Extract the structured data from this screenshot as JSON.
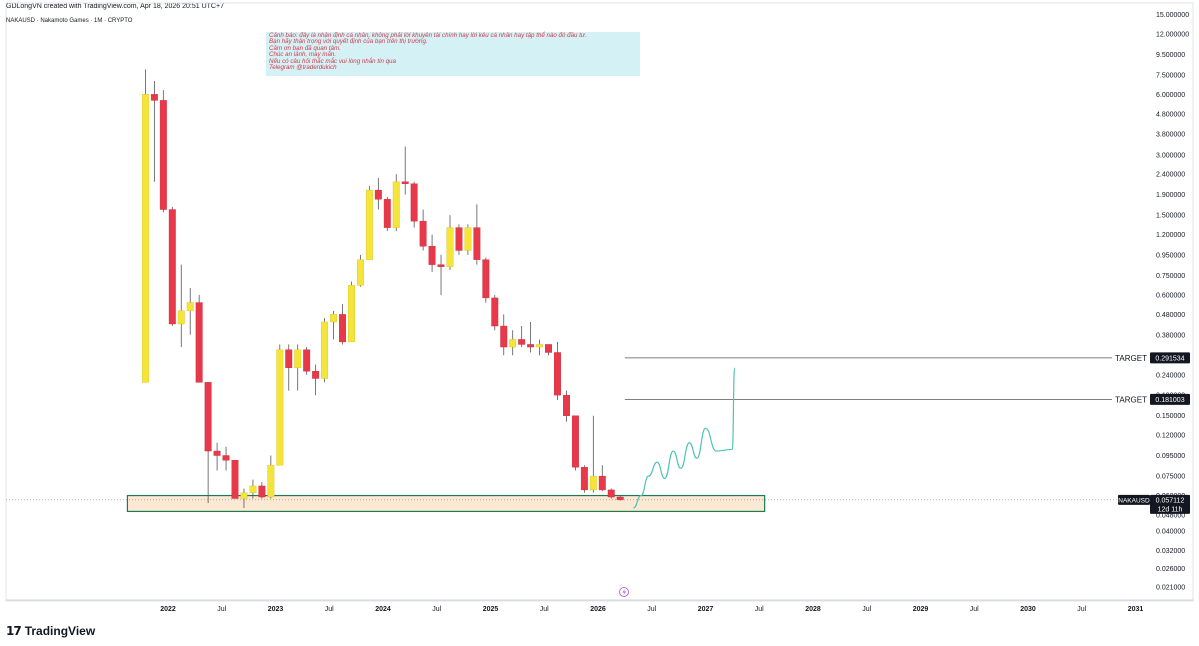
{
  "header": {
    "credit": "GDLongVN created with TradingView.com, Apr 18, 2026 20:51 UTC+7",
    "symbol_line": "NAKAUSD · Nakamoto Games · 1M · CRYPTO"
  },
  "branding": {
    "logo_mark": "17",
    "logo_text": "TradingView"
  },
  "annotation_box": {
    "lines": [
      "Cảnh báo: đây là nhận định cá nhân, không phải lời khuyên tài chính hay lời kêu cá nhân hay tập thể nào đó đầu tư.",
      "Bạn hãy thận trọng với quyết định của bạn trên thị trường.",
      "Cảm ơn bạn đã quan tâm.",
      "Chúc an lành, may mắn.",
      "Nếu có câu hỏi thắc mắc vui lòng nhắn tin qua",
      "Telegram @traderdukich"
    ]
  },
  "colors": {
    "up": "#f5e43a",
    "down": "#e8394a",
    "wick": "#555555",
    "zone_fill": "#fbe9d3",
    "zone_border": "#1e7a4f",
    "projection": "#4fc3b4",
    "target_line": "#555555",
    "label_bg": "#131722",
    "alert": "#b44fd6"
  },
  "chart_data": {
    "type": "candlestick",
    "scale": "log",
    "symbol": "NAKAUSD",
    "timeframe": "1M",
    "y_ticks": [
      "15.000000",
      "12.000000",
      "9.500000",
      "7.500000",
      "6.000000",
      "4.800000",
      "3.800000",
      "3.000000",
      "2.400000",
      "1.900000",
      "1.500000",
      "1.200000",
      "0.950000",
      "0.750000",
      "0.600000",
      "0.480000",
      "0.380000",
      "0.300000",
      "0.240000",
      "0.190000",
      "0.150000",
      "0.120000",
      "0.095000",
      "0.075000",
      "0.060000",
      "0.048000",
      "0.040000",
      "0.032000",
      "0.026000",
      "0.021000"
    ],
    "x_ticks": [
      "2022",
      "Jul",
      "2023",
      "Jul",
      "2024",
      "Jul",
      "2025",
      "Jul",
      "2026",
      "Jul",
      "2027",
      "Jul",
      "2028",
      "Jul",
      "2029",
      "Jul",
      "2030",
      "Jul",
      "2031"
    ],
    "x_tick_years": [
      2022,
      2022.5,
      2023,
      2023.5,
      2024,
      2024.5,
      2025,
      2025.5,
      2026,
      2026.5,
      2027,
      2027.5,
      2028,
      2028.5,
      2029,
      2029.5,
      2030,
      2030.5,
      2031
    ],
    "candles": [
      {
        "o": 0.22,
        "h": 8.0,
        "l": 0.22,
        "c": 6.0
      },
      {
        "o": 6.0,
        "h": 7.0,
        "l": 2.2,
        "c": 5.6
      },
      {
        "o": 5.6,
        "h": 6.3,
        "l": 1.55,
        "c": 1.6
      },
      {
        "o": 1.6,
        "h": 1.65,
        "l": 0.42,
        "c": 0.43
      },
      {
        "o": 0.43,
        "h": 0.85,
        "l": 0.33,
        "c": 0.5
      },
      {
        "o": 0.5,
        "h": 0.65,
        "l": 0.38,
        "c": 0.55
      },
      {
        "o": 0.55,
        "h": 0.6,
        "l": 0.22,
        "c": 0.22
      },
      {
        "o": 0.22,
        "h": 0.22,
        "l": 0.055,
        "c": 0.1
      },
      {
        "o": 0.1,
        "h": 0.11,
        "l": 0.08,
        "c": 0.095
      },
      {
        "o": 0.095,
        "h": 0.105,
        "l": 0.08,
        "c": 0.09
      },
      {
        "o": 0.09,
        "h": 0.09,
        "l": 0.058,
        "c": 0.058
      },
      {
        "o": 0.058,
        "h": 0.065,
        "l": 0.052,
        "c": 0.062
      },
      {
        "o": 0.062,
        "h": 0.072,
        "l": 0.058,
        "c": 0.067
      },
      {
        "o": 0.067,
        "h": 0.07,
        "l": 0.058,
        "c": 0.059
      },
      {
        "o": 0.059,
        "h": 0.095,
        "l": 0.058,
        "c": 0.085
      },
      {
        "o": 0.085,
        "h": 0.34,
        "l": 0.085,
        "c": 0.32
      },
      {
        "o": 0.32,
        "h": 0.34,
        "l": 0.2,
        "c": 0.26
      },
      {
        "o": 0.26,
        "h": 0.34,
        "l": 0.2,
        "c": 0.32
      },
      {
        "o": 0.32,
        "h": 0.33,
        "l": 0.24,
        "c": 0.25
      },
      {
        "o": 0.25,
        "h": 0.27,
        "l": 0.19,
        "c": 0.23
      },
      {
        "o": 0.23,
        "h": 0.46,
        "l": 0.22,
        "c": 0.44
      },
      {
        "o": 0.44,
        "h": 0.5,
        "l": 0.36,
        "c": 0.48
      },
      {
        "o": 0.48,
        "h": 0.54,
        "l": 0.34,
        "c": 0.35
      },
      {
        "o": 0.35,
        "h": 0.7,
        "l": 0.35,
        "c": 0.67
      },
      {
        "o": 0.67,
        "h": 0.95,
        "l": 0.66,
        "c": 0.9
      },
      {
        "o": 0.9,
        "h": 2.1,
        "l": 0.9,
        "c": 2.0
      },
      {
        "o": 2.0,
        "h": 2.3,
        "l": 1.6,
        "c": 1.8
      },
      {
        "o": 1.8,
        "h": 1.85,
        "l": 1.25,
        "c": 1.3
      },
      {
        "o": 1.3,
        "h": 2.4,
        "l": 1.25,
        "c": 2.2
      },
      {
        "o": 2.2,
        "h": 3.3,
        "l": 1.9,
        "c": 2.15
      },
      {
        "o": 2.15,
        "h": 2.2,
        "l": 1.3,
        "c": 1.4
      },
      {
        "o": 1.4,
        "h": 1.6,
        "l": 1.0,
        "c": 1.05
      },
      {
        "o": 1.05,
        "h": 1.2,
        "l": 0.78,
        "c": 0.85
      },
      {
        "o": 0.85,
        "h": 0.95,
        "l": 0.6,
        "c": 0.83
      },
      {
        "o": 0.83,
        "h": 1.5,
        "l": 0.8,
        "c": 1.3
      },
      {
        "o": 1.3,
        "h": 1.35,
        "l": 0.95,
        "c": 1.0
      },
      {
        "o": 1.0,
        "h": 1.35,
        "l": 0.95,
        "c": 1.3
      },
      {
        "o": 1.3,
        "h": 1.7,
        "l": 0.85,
        "c": 0.9
      },
      {
        "o": 0.9,
        "h": 0.92,
        "l": 0.55,
        "c": 0.58
      },
      {
        "o": 0.58,
        "h": 0.6,
        "l": 0.4,
        "c": 0.42
      },
      {
        "o": 0.42,
        "h": 0.48,
        "l": 0.3,
        "c": 0.33
      },
      {
        "o": 0.33,
        "h": 0.4,
        "l": 0.3,
        "c": 0.36
      },
      {
        "o": 0.36,
        "h": 0.42,
        "l": 0.33,
        "c": 0.34
      },
      {
        "o": 0.34,
        "h": 0.44,
        "l": 0.31,
        "c": 0.33
      },
      {
        "o": 0.33,
        "h": 0.36,
        "l": 0.3,
        "c": 0.34
      },
      {
        "o": 0.34,
        "h": 0.34,
        "l": 0.3,
        "c": 0.31
      },
      {
        "o": 0.31,
        "h": 0.35,
        "l": 0.18,
        "c": 0.19
      },
      {
        "o": 0.19,
        "h": 0.2,
        "l": 0.14,
        "c": 0.15
      },
      {
        "o": 0.15,
        "h": 0.15,
        "l": 0.08,
        "c": 0.083
      },
      {
        "o": 0.083,
        "h": 0.085,
        "l": 0.062,
        "c": 0.064
      },
      {
        "o": 0.064,
        "h": 0.15,
        "l": 0.062,
        "c": 0.075
      },
      {
        "o": 0.075,
        "h": 0.085,
        "l": 0.063,
        "c": 0.064
      },
      {
        "o": 0.064,
        "h": 0.065,
        "l": 0.058,
        "c": 0.059
      },
      {
        "o": 0.059,
        "h": 0.06,
        "l": 0.0566,
        "c": 0.0571
      }
    ],
    "first_candle_year": 2021.79,
    "candle_step_years": 0.08333,
    "support_zone": {
      "from_year": 2021.79,
      "to_year": 2027.55,
      "top": 0.06,
      "bottom": 0.05
    },
    "targets": [
      {
        "label": "TARGET",
        "value": 0.291534,
        "value_label": "0.291534",
        "from_year": 2026.25
      },
      {
        "label": "TARGET",
        "value": 0.181003,
        "value_label": "0.181003",
        "from_year": 2026.25
      }
    ],
    "current_price": {
      "symbol": "NAKAUSD",
      "value": 0.057112,
      "value_label": "0.057112",
      "countdown": "12d 11h"
    },
    "projection_path": [
      {
        "t": 2026.33,
        "v": 0.052
      },
      {
        "t": 2026.4,
        "v": 0.06
      },
      {
        "t": 2026.47,
        "v": 0.075
      },
      {
        "t": 2026.55,
        "v": 0.088
      },
      {
        "t": 2026.62,
        "v": 0.073
      },
      {
        "t": 2026.7,
        "v": 0.1
      },
      {
        "t": 2026.77,
        "v": 0.082
      },
      {
        "t": 2026.85,
        "v": 0.11
      },
      {
        "t": 2026.92,
        "v": 0.092
      },
      {
        "t": 2027.0,
        "v": 0.13
      },
      {
        "t": 2027.1,
        "v": 0.1
      },
      {
        "t": 2027.25,
        "v": 0.102
      },
      {
        "t": 2027.27,
        "v": 0.26
      }
    ]
  }
}
